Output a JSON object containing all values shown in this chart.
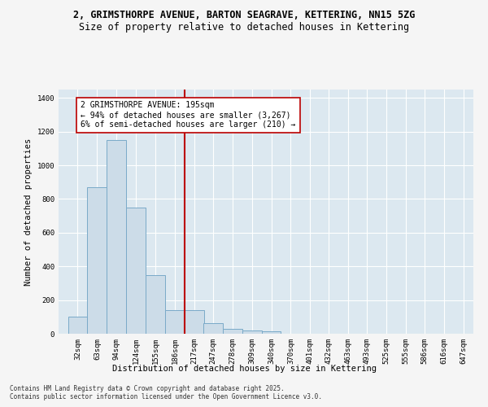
{
  "title_line1": "2, GRIMSTHORPE AVENUE, BARTON SEAGRAVE, KETTERING, NN15 5ZG",
  "title_line2": "Size of property relative to detached houses in Kettering",
  "xlabel": "Distribution of detached houses by size in Kettering",
  "ylabel": "Number of detached properties",
  "bar_color": "#ccdce8",
  "bar_edge_color": "#7aaac8",
  "bin_labels": [
    "32sqm",
    "63sqm",
    "94sqm",
    "124sqm",
    "155sqm",
    "186sqm",
    "217sqm",
    "247sqm",
    "278sqm",
    "309sqm",
    "340sqm",
    "370sqm",
    "401sqm",
    "432sqm",
    "463sqm",
    "493sqm",
    "525sqm",
    "555sqm",
    "586sqm",
    "616sqm",
    "647sqm"
  ],
  "bin_left_edges": [
    16,
    47,
    78,
    109,
    140,
    171,
    202,
    232,
    263,
    294,
    325,
    356,
    386,
    417,
    448,
    478,
    509,
    540,
    570,
    601,
    632
  ],
  "values": [
    100,
    870,
    1150,
    750,
    350,
    140,
    140,
    65,
    30,
    20,
    15,
    0,
    0,
    0,
    0,
    0,
    0,
    0,
    0,
    0,
    0
  ],
  "bin_width": 31,
  "vline_x": 202,
  "vline_color": "#bb0000",
  "annotation_text": "2 GRIMSTHORPE AVENUE: 195sqm\n← 94% of detached houses are smaller (3,267)\n6% of semi-detached houses are larger (210) →",
  "annotation_box_facecolor": "#ffffff",
  "annotation_box_edgecolor": "#bb0000",
  "ylim": [
    0,
    1450
  ],
  "yticks": [
    0,
    200,
    400,
    600,
    800,
    1000,
    1200,
    1400
  ],
  "xlim_left": 1,
  "xlim_right": 663,
  "background_color": "#dce8f0",
  "figure_facecolor": "#f5f5f5",
  "footer_line1": "Contains HM Land Registry data © Crown copyright and database right 2025.",
  "footer_line2": "Contains public sector information licensed under the Open Government Licence v3.0.",
  "title_fontsize": 8.5,
  "subtitle_fontsize": 8.5,
  "axis_label_fontsize": 7.5,
  "tick_fontsize": 6.5,
  "annotation_fontsize": 7,
  "footer_fontsize": 5.5
}
